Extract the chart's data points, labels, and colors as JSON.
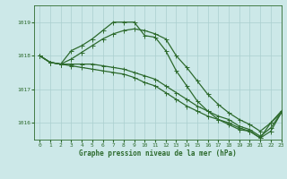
{
  "line1_sharp": {
    "x": [
      0,
      1,
      2,
      3,
      4,
      5,
      6,
      7,
      8,
      9,
      10,
      11,
      12,
      13,
      14,
      15,
      16,
      17,
      18,
      19,
      20,
      21,
      22,
      23
    ],
    "y": [
      1018.0,
      1017.8,
      1017.75,
      1018.15,
      1018.3,
      1018.5,
      1018.75,
      1019.0,
      1019.0,
      1019.0,
      1018.6,
      1018.55,
      1018.15,
      1017.55,
      1017.1,
      1016.65,
      1016.35,
      1016.1,
      1015.95,
      1015.8,
      1015.75,
      1015.55,
      1016.0,
      1016.3
    ]
  },
  "line2_bell": {
    "x": [
      0,
      1,
      2,
      3,
      4,
      5,
      6,
      7,
      8,
      9,
      10,
      11,
      12,
      13,
      14,
      15,
      16,
      17,
      18,
      19,
      20,
      21,
      22,
      23
    ],
    "y": [
      1018.0,
      1017.8,
      1017.75,
      1017.9,
      1018.1,
      1018.3,
      1018.5,
      1018.65,
      1018.75,
      1018.8,
      1018.75,
      1018.65,
      1018.5,
      1018.0,
      1017.65,
      1017.25,
      1016.85,
      1016.55,
      1016.3,
      1016.1,
      1015.95,
      1015.75,
      1016.0,
      1016.35
    ]
  },
  "line3_flat": {
    "x": [
      0,
      1,
      2,
      3,
      4,
      5,
      6,
      7,
      8,
      9,
      10,
      11,
      12,
      13,
      14,
      15,
      16,
      17,
      18,
      19,
      20,
      21,
      22,
      23
    ],
    "y": [
      1018.0,
      1017.8,
      1017.75,
      1017.75,
      1017.75,
      1017.75,
      1017.7,
      1017.65,
      1017.6,
      1017.5,
      1017.4,
      1017.3,
      1017.1,
      1016.9,
      1016.7,
      1016.5,
      1016.35,
      1016.2,
      1016.1,
      1015.9,
      1015.8,
      1015.6,
      1015.85,
      1016.3
    ]
  },
  "line4_flat2": {
    "x": [
      0,
      1,
      2,
      3,
      4,
      5,
      6,
      7,
      8,
      9,
      10,
      11,
      12,
      13,
      14,
      15,
      16,
      17,
      18,
      19,
      20,
      21,
      22,
      23
    ],
    "y": [
      1018.0,
      1017.8,
      1017.75,
      1017.7,
      1017.65,
      1017.6,
      1017.55,
      1017.5,
      1017.45,
      1017.35,
      1017.2,
      1017.1,
      1016.9,
      1016.7,
      1016.5,
      1016.35,
      1016.2,
      1016.1,
      1016.0,
      1015.85,
      1015.75,
      1015.55,
      1015.75,
      1016.3
    ]
  },
  "line_color": "#2d6a2d",
  "bg_color": "#cce8e8",
  "grid_color": "#aacfcf",
  "xlabel": "Graphe pression niveau de la mer (hPa)",
  "ylim": [
    1015.5,
    1019.5
  ],
  "xlim": [
    -0.5,
    23
  ],
  "yticks": [
    1016,
    1017,
    1018,
    1019
  ],
  "xticks": [
    0,
    1,
    2,
    3,
    4,
    5,
    6,
    7,
    8,
    9,
    10,
    11,
    12,
    13,
    14,
    15,
    16,
    17,
    18,
    19,
    20,
    21,
    22,
    23
  ],
  "markersize": 2.0,
  "linewidth": 0.9
}
